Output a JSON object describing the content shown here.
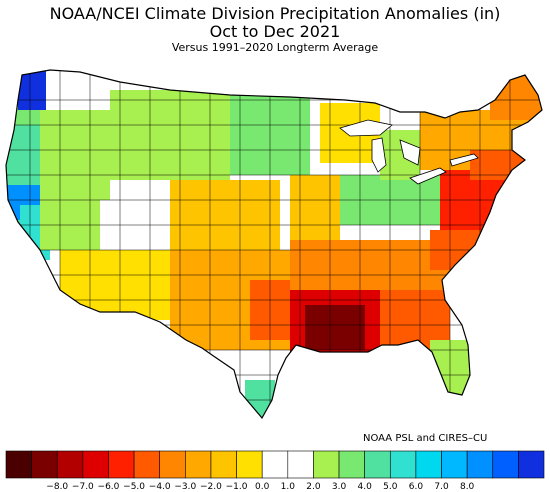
{
  "header": {
    "title_line1": "NOAA/NCEI Climate Division Precipitation Anomalies (in)",
    "title_line2": "Oct to Dec 2021",
    "subtitle": "Versus 1991–2020 Longterm Average"
  },
  "credit": "NOAA PSL and CIRES–CU",
  "legend": {
    "colors": [
      "#4a0000",
      "#7a0000",
      "#b20000",
      "#de0000",
      "#ff2000",
      "#ff5a00",
      "#ff8600",
      "#ffa800",
      "#ffc400",
      "#ffe000",
      "#ffffff",
      "#ffffff",
      "#a8f050",
      "#78e870",
      "#50e0a0",
      "#30e0d0",
      "#00d8f0",
      "#00b8ff",
      "#0090ff",
      "#0060ff",
      "#1030e0"
    ],
    "tick_labels": [
      "−8.0",
      "−7.0",
      "−6.0",
      "−5.0",
      "−4.0",
      "−3.0",
      "−2.0",
      "−1.0",
      "0.0",
      "1.0",
      "2.0",
      "3.0",
      "4.0",
      "5.0",
      "6.0",
      "7.0",
      "8.0"
    ]
  },
  "colors": {
    "very_dry": "#7a0000",
    "dry": "#ff5a00",
    "slightly_dry": "#ffc400",
    "near_normal": "#ffffff",
    "slightly_wet": "#a8f050",
    "wet": "#50e0a0",
    "very_wet": "#0060ff"
  }
}
